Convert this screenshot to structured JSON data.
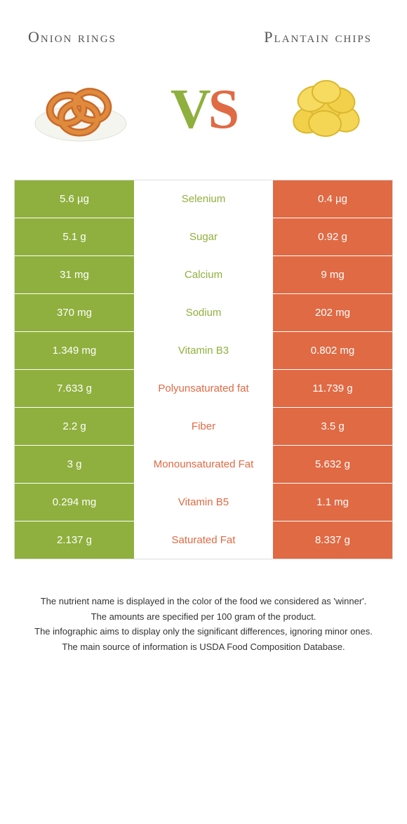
{
  "header": {
    "left_title": "Onion rings",
    "right_title": "Plantain chips"
  },
  "vs": {
    "v": "V",
    "s": "S"
  },
  "colors": {
    "green": "#8fb03e",
    "orange": "#e06a44",
    "plate": "#f0f0e8",
    "onion": "#d97a2e",
    "onion_dark": "#b85a1e",
    "chip": "#f2d04a",
    "chip_dark": "#e0b830"
  },
  "rows": [
    {
      "left": "5.6 µg",
      "mid": "Selenium",
      "right": "0.4 µg",
      "winner": "left"
    },
    {
      "left": "5.1 g",
      "mid": "Sugar",
      "right": "0.92 g",
      "winner": "left"
    },
    {
      "left": "31 mg",
      "mid": "Calcium",
      "right": "9 mg",
      "winner": "left"
    },
    {
      "left": "370 mg",
      "mid": "Sodium",
      "right": "202 mg",
      "winner": "left"
    },
    {
      "left": "1.349 mg",
      "mid": "Vitamin B3",
      "right": "0.802 mg",
      "winner": "left"
    },
    {
      "left": "7.633 g",
      "mid": "Polyunsaturated fat",
      "right": "11.739 g",
      "winner": "right"
    },
    {
      "left": "2.2 g",
      "mid": "Fiber",
      "right": "3.5 g",
      "winner": "right"
    },
    {
      "left": "3 g",
      "mid": "Monounsaturated Fat",
      "right": "5.632 g",
      "winner": "right"
    },
    {
      "left": "0.294 mg",
      "mid": "Vitamin B5",
      "right": "1.1 mg",
      "winner": "right"
    },
    {
      "left": "2.137 g",
      "mid": "Saturated Fat",
      "right": "8.337 g",
      "winner": "right"
    }
  ],
  "footer": {
    "l1": "The nutrient name is displayed in the color of the food we considered as 'winner'.",
    "l2": "The amounts are specified per 100 gram of the product.",
    "l3": "The infographic aims to display only the significant differences, ignoring minor ones.",
    "l4": "The main source of information is USDA Food Composition Database."
  }
}
